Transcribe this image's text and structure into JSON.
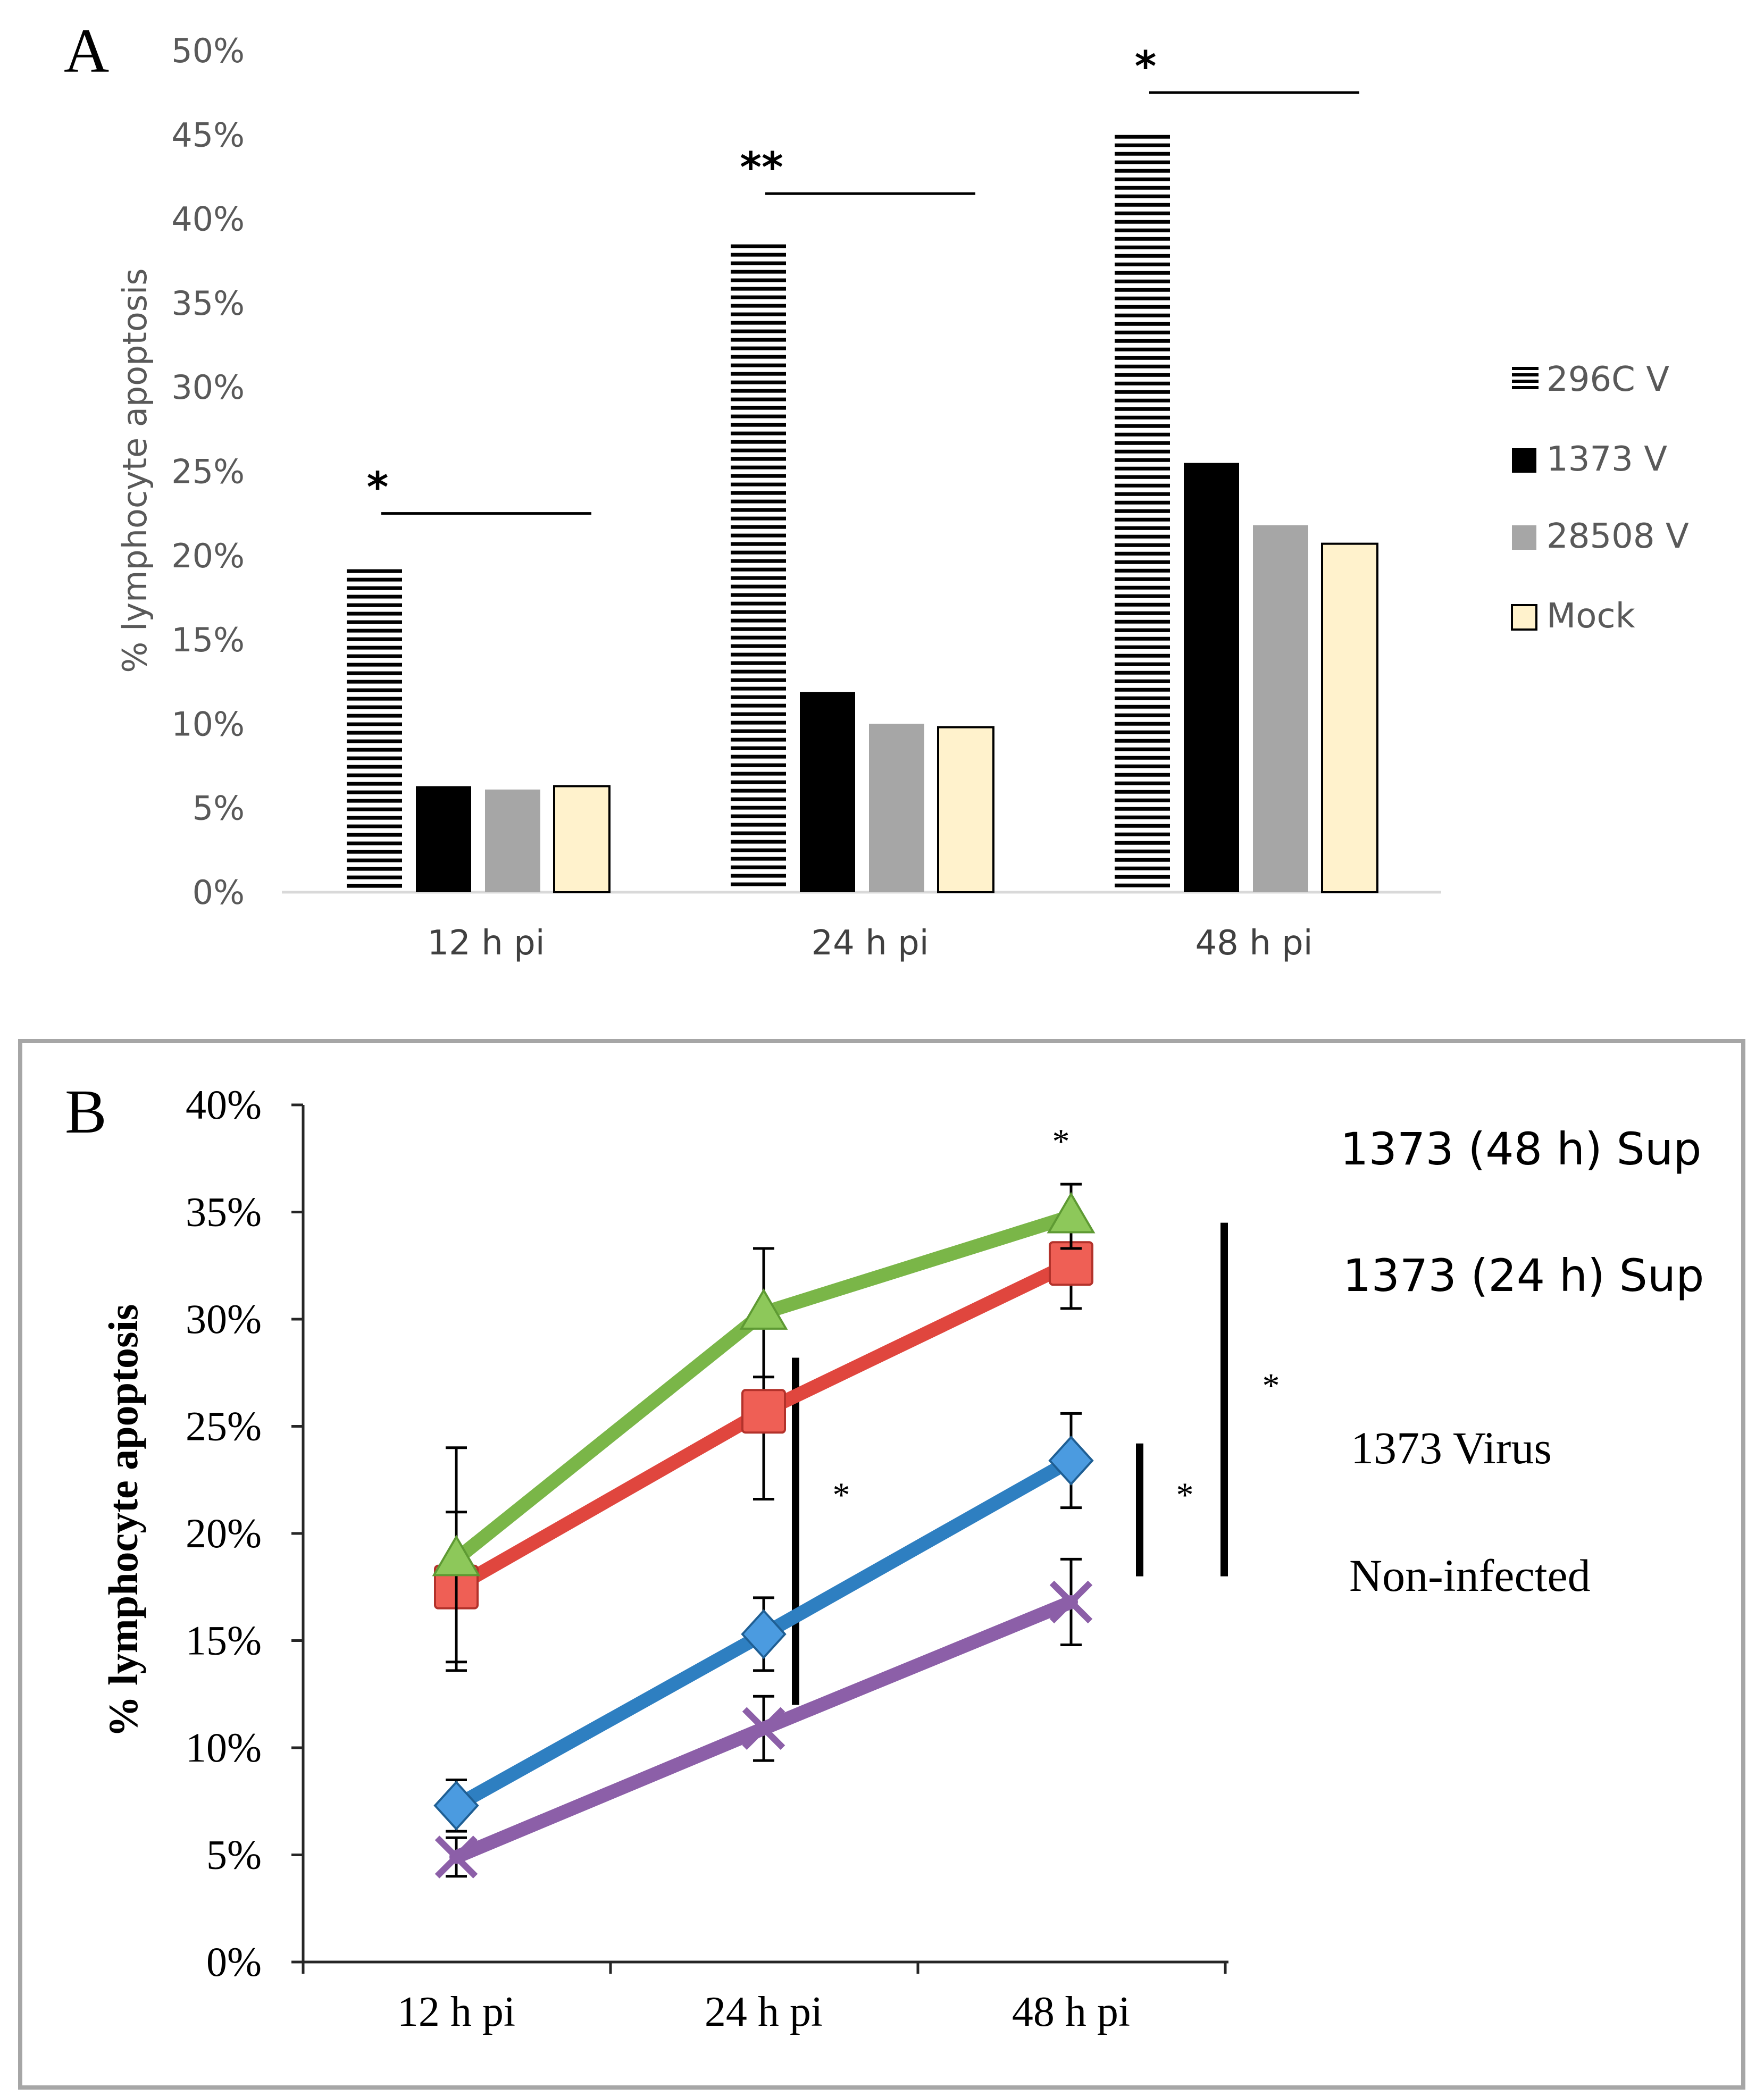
{
  "chart_data": [
    {
      "panel_label": "A",
      "type": "bar",
      "ylabel": "% lymphocyte apoptosis",
      "xlabel": "",
      "ylim": [
        0,
        50
      ],
      "yticks": [
        "0%",
        "5%",
        "10%",
        "15%",
        "20%",
        "25%",
        "30%",
        "35%",
        "40%",
        "45%",
        "50%"
      ],
      "categories": [
        "12 h pi",
        "24 h pi",
        "48 h pi"
      ],
      "legend_position": "right",
      "series": [
        {
          "name": "296C V",
          "style": "hatched",
          "color": "#000000",
          "values": [
            19.2,
            38.5,
            45.0
          ]
        },
        {
          "name": "1373  V",
          "style": "solid",
          "color": "#000000",
          "values": [
            6.3,
            11.9,
            25.5
          ]
        },
        {
          "name": "28508 V",
          "style": "solid",
          "color": "#a6a6a6",
          "values": [
            6.1,
            10.0,
            21.8
          ]
        },
        {
          "name": "Mock",
          "style": "solid-outlined",
          "color": "#fff2cc",
          "values": [
            6.3,
            9.8,
            20.7
          ]
        }
      ],
      "annotations": [
        {
          "category": "12 h pi",
          "text": "*",
          "level": 22.5
        },
        {
          "category": "24 h pi",
          "text": "**",
          "level": 41.5
        },
        {
          "category": "48 h pi",
          "text": "*",
          "level": 47.5
        }
      ]
    },
    {
      "panel_label": "B",
      "type": "line",
      "ylabel": "% lymphocyte apoptosis",
      "xlabel": "",
      "ylim": [
        0,
        40
      ],
      "yticks": [
        "0%",
        "5%",
        "10%",
        "15%",
        "20%",
        "25%",
        "30%",
        "35%",
        "40%"
      ],
      "categories": [
        "12 h pi",
        "24 h pi",
        "48 h pi"
      ],
      "series": [
        {
          "name": "1373 (48 h) Sup",
          "color": "#7ab648",
          "marker": "triangle",
          "values": [
            18.8,
            30.3,
            34.8
          ],
          "errors": [
            5.2,
            3.0,
            1.5
          ]
        },
        {
          "name": "1373 (24 h) Sup",
          "color": "#e0463e",
          "marker": "square",
          "values": [
            17.5,
            25.7,
            32.6
          ],
          "errors": [
            3.5,
            4.1,
            2.1
          ]
        },
        {
          "name": "1373 Virus",
          "color": "#2e7fc1",
          "marker": "diamond",
          "values": [
            7.3,
            15.3,
            23.4
          ],
          "errors": [
            1.2,
            1.7,
            2.2
          ]
        },
        {
          "name": "Non-infected",
          "color": "#8c5fa8",
          "marker": "x",
          "values": [
            4.9,
            10.9,
            16.8
          ],
          "errors": [
            0.9,
            1.5,
            2.0
          ]
        }
      ],
      "annotations": [
        {
          "text": "*",
          "position": "above 48 h pi"
        },
        {
          "text": "*",
          "position": "bracket at 24 h pi",
          "from": 12.0,
          "to": 28.2
        },
        {
          "text": "*",
          "position": "bracket right of 48 h pi (inner)",
          "from": 18.0,
          "to": 24.2
        },
        {
          "text": "*",
          "position": "bracket right of 48 h pi (outer)",
          "from": 18.0,
          "to": 34.5
        }
      ]
    }
  ]
}
